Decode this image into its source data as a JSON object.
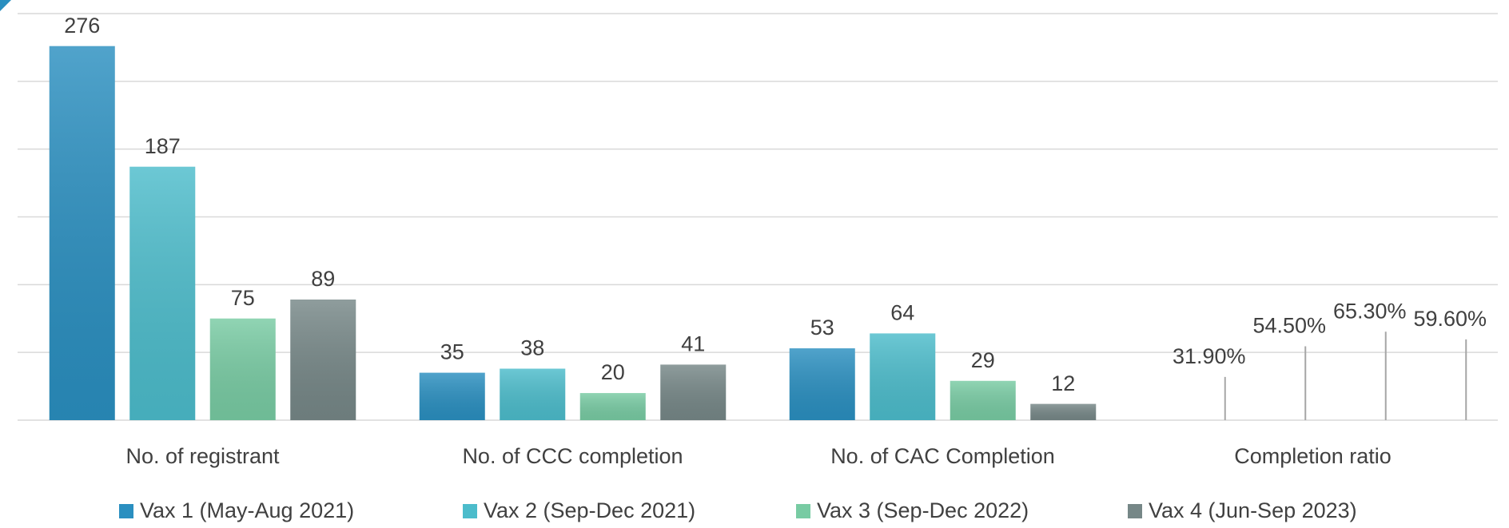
{
  "chart_data": {
    "type": "bar",
    "categories": [
      "No. of registrant",
      "No. of CCC completion",
      "No. of CAC Completion",
      "Completion ratio"
    ],
    "series": [
      {
        "name": "Vax 1 (May-Aug 2021)",
        "color": "#2a8fc0",
        "values": [
          276,
          35,
          53,
          31.9
        ],
        "value_labels": [
          "276",
          "35",
          "53",
          "31.90%"
        ]
      },
      {
        "name": "Vax 2 (Sep-Dec 2021)",
        "color": "#4cbccb",
        "values": [
          187,
          38,
          64,
          54.5
        ],
        "value_labels": [
          "187",
          "38",
          "64",
          "54.50%"
        ]
      },
      {
        "name": "Vax 3 (Sep-Dec 2022)",
        "color": "#78cba3",
        "values": [
          75,
          20,
          29,
          65.3
        ],
        "value_labels": [
          "75",
          "20",
          "29",
          "65.30%"
        ]
      },
      {
        "name": "Vax 4 (Jun-Sep 2023)",
        "color": "#768787",
        "values": [
          89,
          41,
          12,
          59.6
        ],
        "value_labels": [
          "89",
          "41",
          "12",
          "59.60%"
        ]
      }
    ],
    "ylim": [
      0,
      300
    ],
    "yticks": [
      0,
      50,
      100,
      150,
      200,
      250,
      300
    ],
    "grid": true,
    "outline_only_categories": [
      3
    ],
    "legend": "bottom"
  }
}
